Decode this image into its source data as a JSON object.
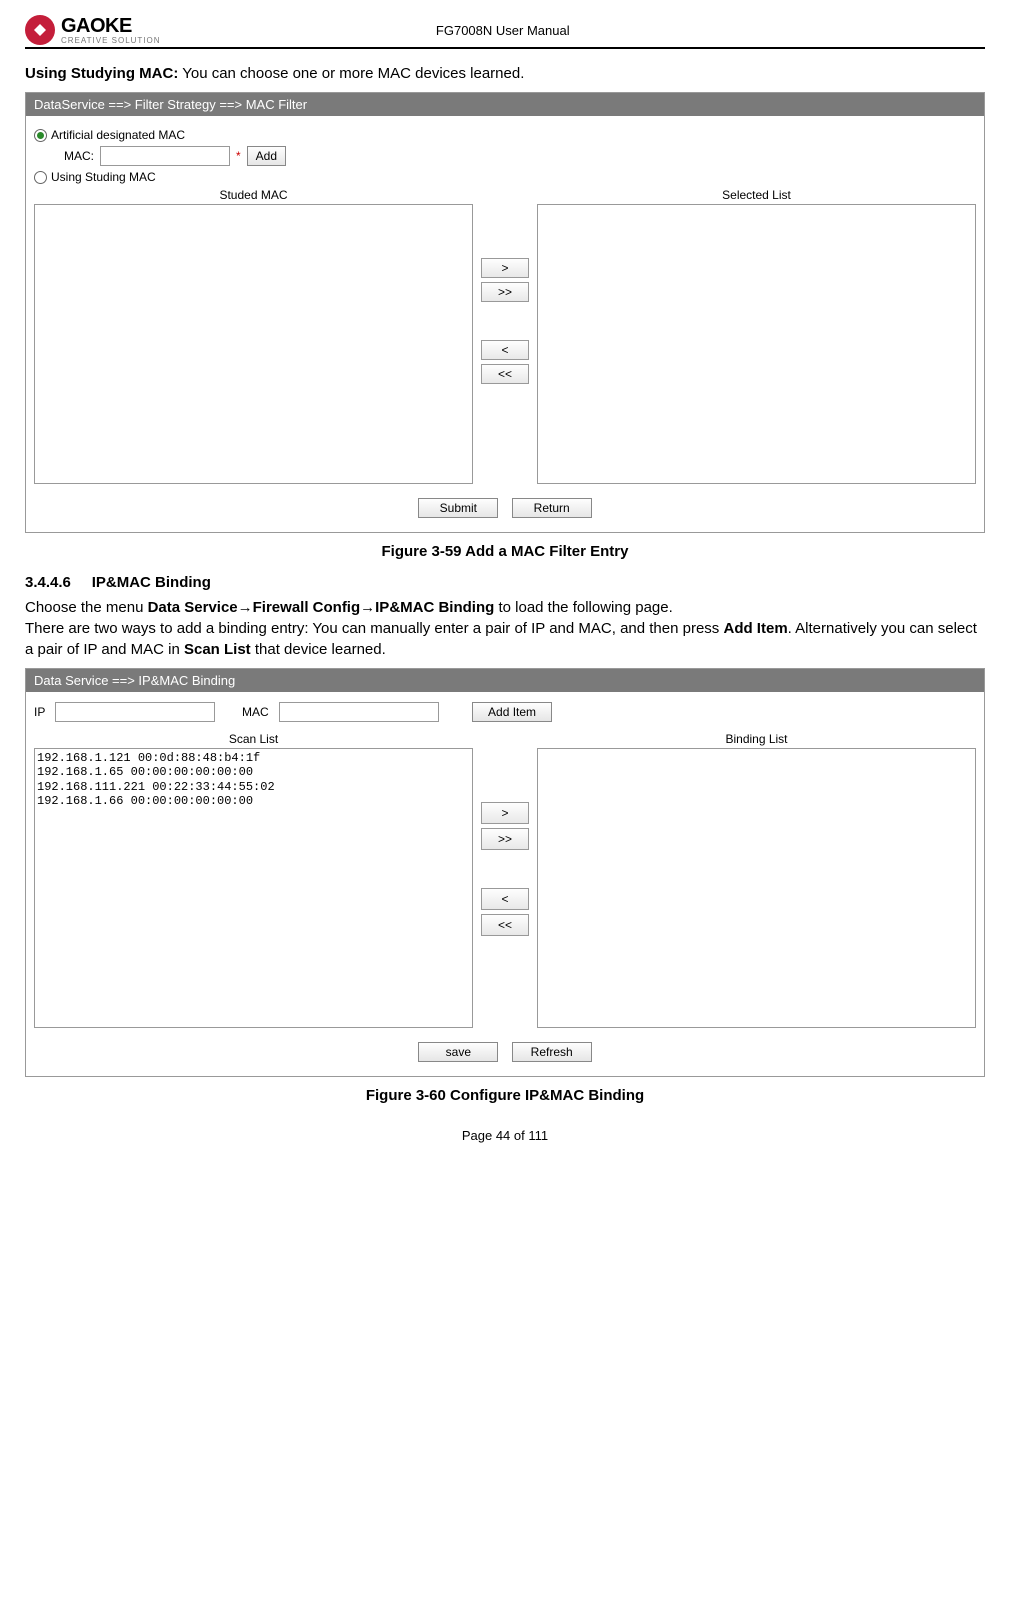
{
  "header": {
    "brand": "GAOKE",
    "brand_sub": "CREATIVE SOLUTION",
    "doc_title": "FG7008N User Manual"
  },
  "intro": {
    "lead_bold": "Using Studying MAC:",
    "lead_rest": " You can choose one or more MAC devices learned."
  },
  "fig59": {
    "titlebar": "DataService ==> Filter Strategy ==> MAC Filter",
    "radio1_label": "Artificial designated MAC",
    "mac_label": "MAC:",
    "mac_value": "",
    "add_button": "Add",
    "radio2_label": "Using Studing MAC",
    "left_header": "Studed MAC",
    "right_header": "Selected List",
    "left_items": [],
    "right_items": [],
    "transfer": {
      "r": ">",
      "rr": ">>",
      "l": "<",
      "ll": "<<"
    },
    "submit": "Submit",
    "ret": "Return",
    "caption": "Figure 3-59  Add a MAC Filter Entry"
  },
  "section": {
    "num": "3.4.4.6",
    "title": "IP&MAC Binding"
  },
  "para2": {
    "p1a": "Choose the menu ",
    "p1b": "Data Service→Firewall Config→IP&MAC Binding",
    "p1c": " to load the following page.",
    "p2a": "There are two ways to add a binding entry: You can manually enter a pair of IP and MAC, and then press ",
    "p2b": "Add Item",
    "p2c": ". Alternatively you can select a pair of IP and MAC in ",
    "p2d": "Scan List",
    "p2e": " that device learned."
  },
  "fig60": {
    "titlebar": "Data Service ==> IP&MAC Binding",
    "ip_label": "IP",
    "ip_value": "",
    "mac_label": "MAC",
    "mac_value": "",
    "add_item": "Add Item",
    "left_header": "Scan List",
    "right_header": "Binding List",
    "scan_items": [
      "192.168.1.121 00:0d:88:48:b4:1f",
      "192.168.1.65 00:00:00:00:00:00",
      "192.168.111.221 00:22:33:44:55:02",
      "192.168.1.66 00:00:00:00:00:00"
    ],
    "binding_items": [],
    "transfer": {
      "r": ">",
      "rr": ">>",
      "l": "<",
      "ll": "<<"
    },
    "save": "save",
    "refresh": "Refresh",
    "caption": "Figure 3-60  Configure IP&MAC Binding"
  },
  "footer": {
    "page": "Page 44 of 111"
  },
  "colors": {
    "titlebar_bg": "#7a7a7a",
    "logo_red": "#c41e3a"
  }
}
